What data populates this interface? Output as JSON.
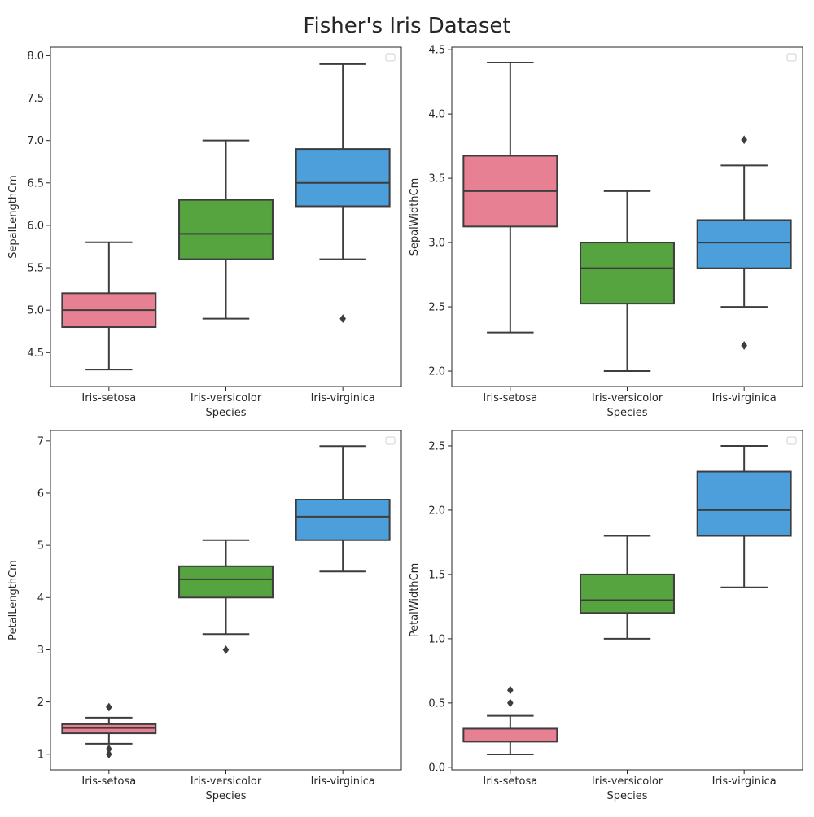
{
  "title": "Fisher's Iris Dataset",
  "colors": {
    "Iris-setosa": "#e88093",
    "Iris-versicolor": "#56a440",
    "Iris-virginica": "#4c9fda",
    "edge": "#3d3d3d",
    "frame": "#262626"
  },
  "chart_data": [
    {
      "type": "box",
      "title": "",
      "xlabel": "Species",
      "ylabel": "SepalLengthCm",
      "categories": [
        "Iris-setosa",
        "Iris-versicolor",
        "Iris-virginica"
      ],
      "ylim": [
        4.1,
        8.1
      ],
      "yticks": [
        4.5,
        5.0,
        5.5,
        6.0,
        6.5,
        7.0,
        7.5,
        8.0
      ],
      "decimals": 1,
      "legend": "empty box at top-right",
      "boxes": [
        {
          "category": "Iris-setosa",
          "whisker_low": 4.3,
          "q1": 4.8,
          "median": 5.0,
          "q3": 5.2,
          "whisker_high": 5.8,
          "outliers": []
        },
        {
          "category": "Iris-versicolor",
          "whisker_low": 4.9,
          "q1": 5.6,
          "median": 5.9,
          "q3": 6.3,
          "whisker_high": 7.0,
          "outliers": []
        },
        {
          "category": "Iris-virginica",
          "whisker_low": 5.6,
          "q1": 6.225,
          "median": 6.5,
          "q3": 6.9,
          "whisker_high": 7.9,
          "outliers": [
            4.9
          ]
        }
      ]
    },
    {
      "type": "box",
      "title": "",
      "xlabel": "Species",
      "ylabel": "SepalWidthCm",
      "categories": [
        "Iris-setosa",
        "Iris-versicolor",
        "Iris-virginica"
      ],
      "ylim": [
        1.88,
        4.52
      ],
      "yticks": [
        2.0,
        2.5,
        3.0,
        3.5,
        4.0,
        4.5
      ],
      "decimals": 1,
      "legend": "empty box at top-right",
      "boxes": [
        {
          "category": "Iris-setosa",
          "whisker_low": 2.3,
          "q1": 3.125,
          "median": 3.4,
          "q3": 3.675,
          "whisker_high": 4.4,
          "outliers": []
        },
        {
          "category": "Iris-versicolor",
          "whisker_low": 2.0,
          "q1": 2.525,
          "median": 2.8,
          "q3": 3.0,
          "whisker_high": 3.4,
          "outliers": []
        },
        {
          "category": "Iris-virginica",
          "whisker_low": 2.5,
          "q1": 2.8,
          "median": 3.0,
          "q3": 3.175,
          "whisker_high": 3.6,
          "outliers": [
            3.8,
            2.2
          ]
        }
      ]
    },
    {
      "type": "box",
      "title": "",
      "xlabel": "Species",
      "ylabel": "PetalLengthCm",
      "categories": [
        "Iris-setosa",
        "Iris-versicolor",
        "Iris-virginica"
      ],
      "ylim": [
        0.7,
        7.2
      ],
      "yticks": [
        1,
        2,
        3,
        4,
        5,
        6,
        7
      ],
      "decimals": 0,
      "legend": "empty box at top-right",
      "boxes": [
        {
          "category": "Iris-setosa",
          "whisker_low": 1.2,
          "q1": 1.4,
          "median": 1.5,
          "q3": 1.575,
          "whisker_high": 1.7,
          "outliers": [
            1.9,
            1.1,
            1.0
          ]
        },
        {
          "category": "Iris-versicolor",
          "whisker_low": 3.3,
          "q1": 4.0,
          "median": 4.35,
          "q3": 4.6,
          "whisker_high": 5.1,
          "outliers": [
            3.0
          ]
        },
        {
          "category": "Iris-virginica",
          "whisker_low": 4.5,
          "q1": 5.1,
          "median": 5.55,
          "q3": 5.875,
          "whisker_high": 6.9,
          "outliers": []
        }
      ]
    },
    {
      "type": "box",
      "title": "",
      "xlabel": "Species",
      "ylabel": "PetalWidthCm",
      "categories": [
        "Iris-setosa",
        "Iris-versicolor",
        "Iris-virginica"
      ],
      "ylim": [
        -0.02,
        2.62
      ],
      "yticks": [
        0.0,
        0.5,
        1.0,
        1.5,
        2.0,
        2.5
      ],
      "decimals": 1,
      "legend": "empty box at top-right",
      "boxes": [
        {
          "category": "Iris-setosa",
          "whisker_low": 0.1,
          "q1": 0.2,
          "median": 0.2,
          "q3": 0.3,
          "whisker_high": 0.4,
          "outliers": [
            0.6,
            0.5
          ]
        },
        {
          "category": "Iris-versicolor",
          "whisker_low": 1.0,
          "q1": 1.2,
          "median": 1.3,
          "q3": 1.5,
          "whisker_high": 1.8,
          "outliers": []
        },
        {
          "category": "Iris-virginica",
          "whisker_low": 1.4,
          "q1": 1.8,
          "median": 2.0,
          "q3": 2.3,
          "whisker_high": 2.5,
          "outliers": []
        }
      ]
    }
  ]
}
